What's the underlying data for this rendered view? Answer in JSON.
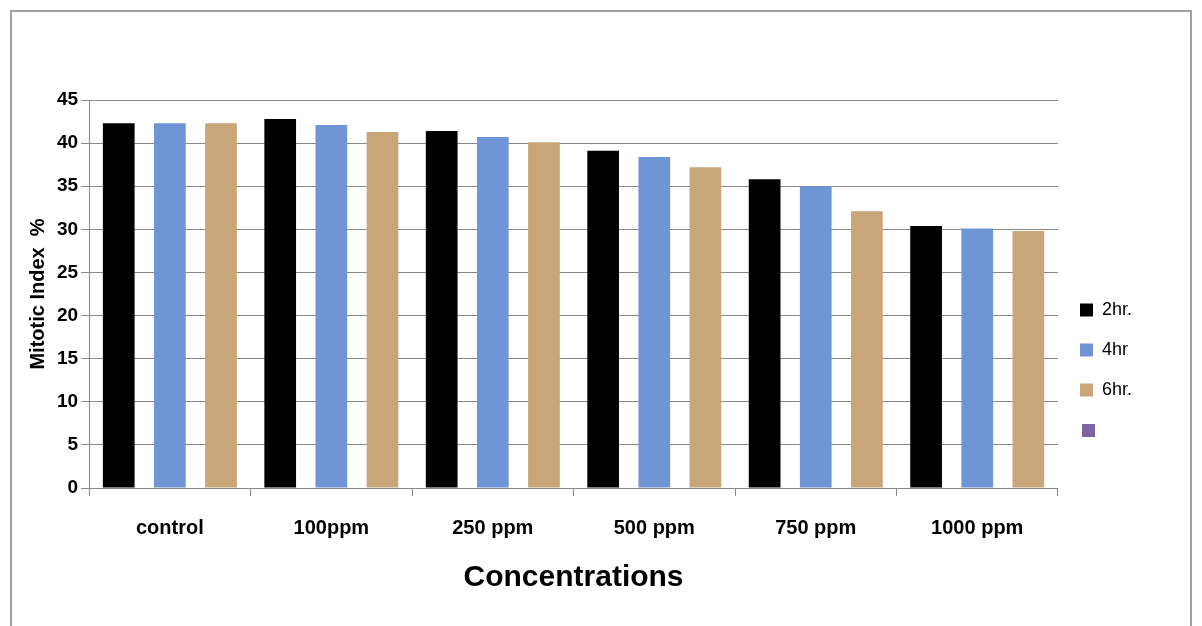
{
  "chart_data": {
    "type": "bar",
    "xlabel": "Concentrations",
    "ylabel": "Mitotic Index  %",
    "categories": [
      "control",
      "100ppm",
      "250 ppm",
      "500 ppm",
      "750 ppm",
      "1000 ppm"
    ],
    "series": [
      {
        "name": "2hr.",
        "color": "#000000",
        "values": [
          42.3,
          42.8,
          41.4,
          39.1,
          35.8,
          30.4
        ]
      },
      {
        "name": "4hr",
        "color": "#6f95d6",
        "values": [
          42.3,
          42.1,
          40.7,
          38.4,
          35.0,
          30.1
        ]
      },
      {
        "name": "6hr.",
        "color": "#c9a57a",
        "values": [
          42.3,
          41.3,
          40.1,
          37.2,
          32.1,
          29.8
        ]
      }
    ],
    "ylim": [
      0,
      45
    ],
    "yticks": [
      0,
      5,
      10,
      15,
      20,
      25,
      30,
      35,
      40,
      45
    ],
    "grid": "y",
    "legend": "right"
  }
}
